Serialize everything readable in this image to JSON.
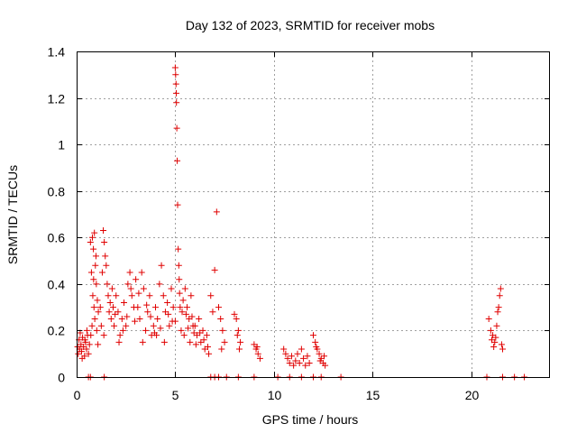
{
  "chart_data": {
    "type": "scatter",
    "title": "Day 132 of 2023, SRMTID for receiver mobs",
    "xlabel": "GPS time / hours",
    "ylabel": "SRMTID / TECUs",
    "xlim": [
      0,
      24
    ],
    "ylim": [
      0,
      1.4
    ],
    "xticks": [
      0,
      5,
      10,
      15,
      20
    ],
    "xtick_labels": [
      "0",
      "5",
      "10",
      "15",
      "20"
    ],
    "yticks": [
      0,
      0.2,
      0.4,
      0.6,
      0.8,
      1,
      1.2,
      1.4
    ],
    "ytick_labels": [
      "0",
      "0.2",
      "0.4",
      "0.6",
      "0.8",
      "1",
      "1.2",
      "1.4"
    ],
    "grid": true,
    "marker": "+",
    "marker_color": "#e00000",
    "series": [
      {
        "points": [
          [
            0.05,
            0.13
          ],
          [
            0.08,
            0.1
          ],
          [
            0.12,
            0.16
          ],
          [
            0.15,
            0.12
          ],
          [
            0.18,
            0.19
          ],
          [
            0.22,
            0.14
          ],
          [
            0.25,
            0.11
          ],
          [
            0.3,
            0.17
          ],
          [
            0.35,
            0.13
          ],
          [
            0.4,
            0.09
          ],
          [
            0.45,
            0.15
          ],
          [
            0.5,
            0.12
          ],
          [
            0.55,
            0.18
          ],
          [
            0.6,
            0.1
          ],
          [
            0.65,
            0.14
          ],
          [
            0.28,
            0.08
          ],
          [
            0.42,
            0.16
          ],
          [
            0.52,
            0.2
          ],
          [
            0.7,
            0.58
          ],
          [
            0.75,
            0.45
          ],
          [
            0.8,
            0.6
          ],
          [
            0.85,
            0.55
          ],
          [
            0.9,
            0.62
          ],
          [
            0.95,
            0.48
          ],
          [
            1.0,
            0.4
          ],
          [
            0.82,
            0.35
          ],
          [
            0.88,
            0.3
          ],
          [
            0.92,
            0.25
          ],
          [
            0.78,
            0.22
          ],
          [
            1.05,
            0.33
          ],
          [
            1.1,
            0.28
          ],
          [
            0.72,
            0.18
          ],
          [
            0.98,
            0.52
          ],
          [
            0.86,
            0.42
          ],
          [
            1.02,
            0.2
          ],
          [
            1.08,
            0.14
          ],
          [
            1.2,
            0.3
          ],
          [
            1.3,
            0.45
          ],
          [
            1.35,
            0.63
          ],
          [
            1.4,
            0.58
          ],
          [
            1.45,
            0.52
          ],
          [
            1.5,
            0.48
          ],
          [
            1.55,
            0.4
          ],
          [
            1.6,
            0.35
          ],
          [
            1.65,
            0.28
          ],
          [
            1.7,
            0.32
          ],
          [
            1.25,
            0.22
          ],
          [
            1.38,
            0.18
          ],
          [
            1.75,
            0.25
          ],
          [
            1.8,
            0.38
          ],
          [
            1.85,
            0.3
          ],
          [
            1.9,
            0.22
          ],
          [
            1.95,
            0.27
          ],
          [
            2.0,
            0.35
          ],
          [
            2.1,
            0.28
          ],
          [
            2.2,
            0.18
          ],
          [
            2.3,
            0.25
          ],
          [
            2.4,
            0.32
          ],
          [
            2.5,
            0.22
          ],
          [
            2.6,
            0.4
          ],
          [
            2.7,
            0.45
          ],
          [
            2.8,
            0.35
          ],
          [
            2.9,
            0.3
          ],
          [
            2.15,
            0.15
          ],
          [
            2.35,
            0.2
          ],
          [
            2.55,
            0.26
          ],
          [
            2.75,
            0.38
          ],
          [
            2.95,
            0.24
          ],
          [
            3.0,
            0.42
          ],
          [
            3.1,
            0.3
          ],
          [
            3.2,
            0.25
          ],
          [
            3.3,
            0.45
          ],
          [
            3.4,
            0.38
          ],
          [
            3.5,
            0.2
          ],
          [
            3.6,
            0.28
          ],
          [
            3.7,
            0.35
          ],
          [
            3.8,
            0.18
          ],
          [
            3.9,
            0.22
          ],
          [
            3.15,
            0.36
          ],
          [
            3.35,
            0.15
          ],
          [
            3.55,
            0.31
          ],
          [
            3.75,
            0.26
          ],
          [
            3.95,
            0.19
          ],
          [
            4.0,
            0.3
          ],
          [
            4.1,
            0.25
          ],
          [
            4.2,
            0.4
          ],
          [
            4.3,
            0.48
          ],
          [
            4.4,
            0.35
          ],
          [
            4.5,
            0.28
          ],
          [
            4.6,
            0.32
          ],
          [
            4.7,
            0.22
          ],
          [
            4.8,
            0.38
          ],
          [
            4.9,
            0.3
          ],
          [
            4.05,
            0.18
          ],
          [
            4.25,
            0.21
          ],
          [
            4.45,
            0.15
          ],
          [
            4.65,
            0.27
          ],
          [
            4.85,
            0.24
          ],
          [
            5.0,
            1.33
          ],
          [
            5.02,
            1.3
          ],
          [
            5.04,
            1.26
          ],
          [
            5.05,
            1.22
          ],
          [
            5.06,
            1.18
          ],
          [
            5.08,
            1.07
          ],
          [
            5.1,
            0.93
          ],
          [
            5.12,
            0.74
          ],
          [
            5.15,
            0.55
          ],
          [
            5.18,
            0.48
          ],
          [
            5.2,
            0.42
          ],
          [
            5.22,
            0.36
          ],
          [
            5.25,
            0.3
          ],
          [
            5.0,
            0.24
          ],
          [
            5.3,
            0.2
          ],
          [
            5.35,
            0.28
          ],
          [
            5.4,
            0.33
          ],
          [
            5.5,
            0.38
          ],
          [
            5.6,
            0.3
          ],
          [
            5.7,
            0.25
          ],
          [
            5.8,
            0.35
          ],
          [
            5.9,
            0.22
          ],
          [
            5.45,
            0.18
          ],
          [
            5.55,
            0.27
          ],
          [
            5.65,
            0.21
          ],
          [
            5.75,
            0.15
          ],
          [
            5.85,
            0.26
          ],
          [
            5.95,
            0.19
          ],
          [
            6.0,
            0.22
          ],
          [
            6.1,
            0.18
          ],
          [
            6.2,
            0.25
          ],
          [
            6.3,
            0.15
          ],
          [
            6.4,
            0.2
          ],
          [
            6.5,
            0.12
          ],
          [
            6.6,
            0.18
          ],
          [
            6.7,
            0.1
          ],
          [
            6.8,
            0.35
          ],
          [
            6.9,
            0.28
          ],
          [
            6.05,
            0.14
          ],
          [
            6.25,
            0.19
          ],
          [
            6.45,
            0.16
          ],
          [
            6.65,
            0.13
          ],
          [
            7.0,
            0.46
          ],
          [
            7.1,
            0.71
          ],
          [
            7.2,
            0.3
          ],
          [
            7.3,
            0.25
          ],
          [
            7.4,
            0.2
          ],
          [
            7.5,
            0.15
          ],
          [
            7.35,
            0.12
          ],
          [
            8.0,
            0.27
          ],
          [
            8.1,
            0.25
          ],
          [
            8.2,
            0.2
          ],
          [
            8.3,
            0.15
          ],
          [
            8.15,
            0.18
          ],
          [
            8.25,
            0.12
          ],
          [
            9.0,
            0.14
          ],
          [
            9.1,
            0.12
          ],
          [
            9.2,
            0.1
          ],
          [
            9.3,
            0.08
          ],
          [
            9.15,
            0.13
          ],
          [
            10.5,
            0.12
          ],
          [
            10.6,
            0.1
          ],
          [
            10.7,
            0.08
          ],
          [
            10.8,
            0.06
          ],
          [
            10.9,
            0.09
          ],
          [
            11.0,
            0.05
          ],
          [
            11.1,
            0.07
          ],
          [
            11.2,
            0.1
          ],
          [
            11.3,
            0.06
          ],
          [
            11.4,
            0.12
          ],
          [
            11.5,
            0.08
          ],
          [
            11.6,
            0.05
          ],
          [
            11.7,
            0.09
          ],
          [
            11.8,
            0.06
          ],
          [
            12.0,
            0.18
          ],
          [
            12.1,
            0.15
          ],
          [
            12.2,
            0.12
          ],
          [
            12.3,
            0.1
          ],
          [
            12.4,
            0.08
          ],
          [
            12.5,
            0.06
          ],
          [
            12.6,
            0.05
          ],
          [
            12.15,
            0.13
          ],
          [
            12.35,
            0.07
          ],
          [
            12.55,
            0.09
          ],
          [
            20.9,
            0.25
          ],
          [
            21.0,
            0.2
          ],
          [
            21.1,
            0.18
          ],
          [
            21.2,
            0.15
          ],
          [
            21.3,
            0.22
          ],
          [
            21.4,
            0.3
          ],
          [
            21.5,
            0.38
          ],
          [
            21.45,
            0.35
          ],
          [
            21.35,
            0.28
          ],
          [
            21.25,
            0.17
          ],
          [
            21.55,
            0.14
          ],
          [
            21.6,
            0.12
          ],
          [
            21.05,
            0.16
          ],
          [
            21.15,
            0.13
          ],
          [
            0.6,
            0.0
          ],
          [
            0.7,
            0.0
          ],
          [
            1.4,
            0.0
          ],
          [
            6.8,
            0.0
          ],
          [
            7.0,
            0.0
          ],
          [
            7.2,
            0.0
          ],
          [
            7.6,
            0.0
          ],
          [
            8.2,
            0.0
          ],
          [
            9.0,
            0.0
          ],
          [
            10.2,
            0.0
          ],
          [
            10.8,
            0.0
          ],
          [
            11.4,
            0.0
          ],
          [
            12.0,
            0.0
          ],
          [
            12.4,
            0.0
          ],
          [
            13.4,
            0.0
          ],
          [
            20.8,
            0.0
          ],
          [
            21.6,
            0.0
          ],
          [
            22.2,
            0.0
          ],
          [
            22.7,
            0.0
          ]
        ]
      }
    ]
  }
}
